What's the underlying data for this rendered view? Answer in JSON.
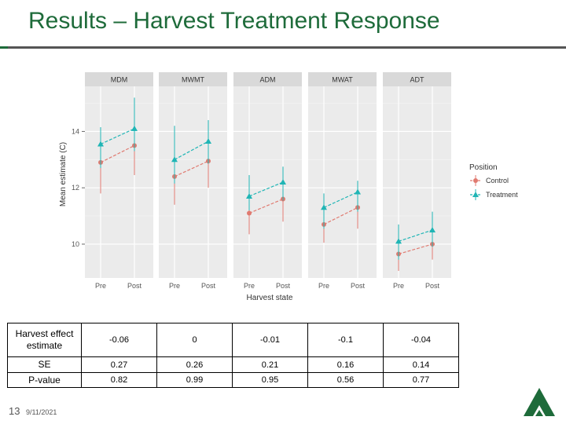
{
  "title": "Results – Harvest Treatment Response",
  "footer": {
    "page_number": "13",
    "date": "9/11/2021"
  },
  "colors": {
    "title": "#1e6b3a",
    "control": "#e07a70",
    "treatment": "#1fb5b5",
    "logo": "#1e6b3a"
  },
  "chart_data": {
    "type": "scatter",
    "ylabel": "Mean estimate (C)",
    "xlabel": "Harvest state",
    "ylim": [
      8.8,
      15.6
    ],
    "yticks": [
      10,
      12,
      14
    ],
    "categories": [
      "Pre",
      "Post"
    ],
    "grid": true,
    "panels": [
      "MDM",
      "MWMT",
      "ADM",
      "MWAT",
      "ADT"
    ],
    "legend": {
      "title": "Position",
      "entries": [
        "Control",
        "Treatment"
      ],
      "placement": "right"
    },
    "series": [
      {
        "name": "Control",
        "marker": "circle",
        "values": [
          [
            12.9,
            13.5
          ],
          [
            12.4,
            12.95
          ],
          [
            11.1,
            11.6
          ],
          [
            10.7,
            11.3
          ],
          [
            9.65,
            10.0
          ]
        ],
        "ci_low": [
          [
            11.8,
            12.45
          ],
          [
            11.4,
            12.0
          ],
          [
            10.35,
            10.8
          ],
          [
            10.05,
            10.55
          ],
          [
            9.05,
            9.45
          ]
        ],
        "ci_high": [
          [
            13.65,
            14.3
          ],
          [
            13.35,
            13.75
          ],
          [
            11.7,
            12.1
          ],
          [
            11.35,
            11.8
          ],
          [
            10.3,
            10.7
          ]
        ]
      },
      {
        "name": "Treatment",
        "marker": "triangle",
        "values": [
          [
            13.55,
            14.1
          ],
          [
            13.0,
            13.65
          ],
          [
            11.7,
            12.2
          ],
          [
            11.3,
            11.85
          ],
          [
            10.1,
            10.5
          ]
        ],
        "ci_low": [
          [
            12.7,
            13.3
          ],
          [
            12.15,
            12.85
          ],
          [
            11.2,
            11.55
          ],
          [
            10.55,
            11.15
          ],
          [
            9.45,
            9.9
          ]
        ],
        "ci_high": [
          [
            14.15,
            15.2
          ],
          [
            14.2,
            14.4
          ],
          [
            12.45,
            12.75
          ],
          [
            11.8,
            12.25
          ],
          [
            10.7,
            11.15
          ]
        ]
      }
    ]
  },
  "table": {
    "rows": [
      {
        "label": "Harvest effect estimate",
        "values": [
          "-0.06",
          "0",
          "-0.01",
          "-0.1",
          "-0.04"
        ]
      },
      {
        "label": "SE",
        "values": [
          "0.27",
          "0.26",
          "0.21",
          "0.16",
          "0.14"
        ]
      },
      {
        "label": "P-value",
        "values": [
          "0.82",
          "0.99",
          "0.95",
          "0.56",
          "0.77"
        ]
      }
    ]
  }
}
